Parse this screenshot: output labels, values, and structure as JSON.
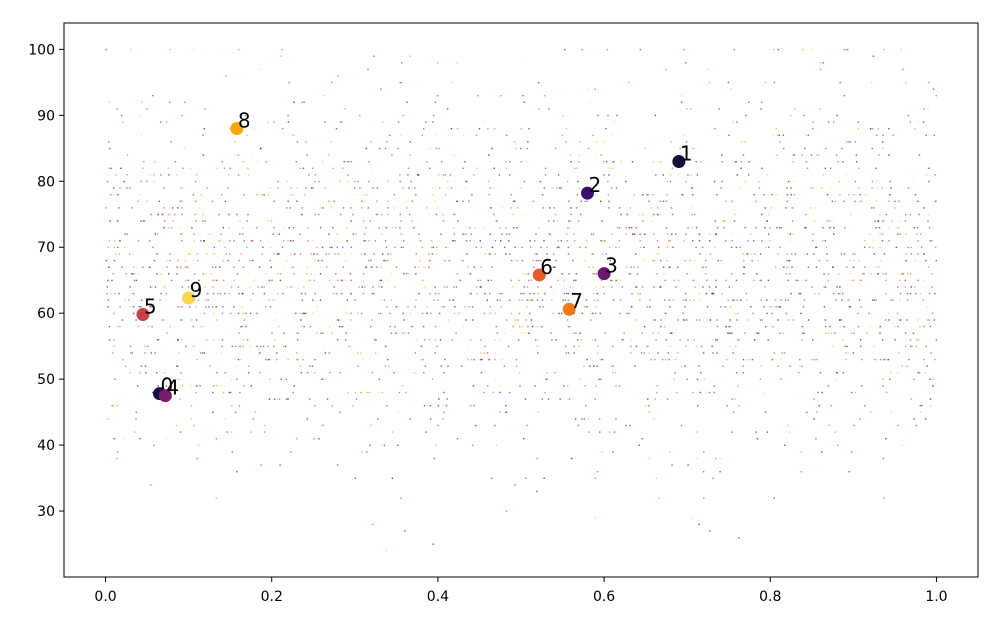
{
  "chart_data": {
    "type": "scatter",
    "title": "",
    "xlabel": "",
    "ylabel": "",
    "xlim": [
      -0.05,
      1.05
    ],
    "ylim": [
      20,
      104
    ],
    "grid": false,
    "x_ticks": [
      0.0,
      0.2,
      0.4,
      0.6,
      0.8,
      1.0
    ],
    "x_tick_labels": [
      "0.0",
      "0.2",
      "0.4",
      "0.6",
      "0.8",
      "1.0"
    ],
    "y_ticks": [
      30,
      40,
      50,
      60,
      70,
      80,
      90,
      100
    ],
    "y_tick_labels": [
      "30",
      "40",
      "50",
      "60",
      "70",
      "80",
      "90",
      "100"
    ],
    "colormap": [
      "#000004",
      "#320a5e",
      "#781b6c",
      "#bb3754",
      "#ec6824",
      "#fbb41a",
      "#fcffa4"
    ],
    "background_points": {
      "count": 3000,
      "x_range": [
        0.0,
        1.0
      ],
      "y_range": [
        24,
        100
      ],
      "marker_size": 1,
      "alpha": 0.65
    },
    "labeled_points": [
      {
        "label": "0",
        "x": 0.065,
        "y": 47.8,
        "color": "#1b0c41"
      },
      {
        "label": "1",
        "x": 0.69,
        "y": 83.0,
        "color": "#160b39"
      },
      {
        "label": "2",
        "x": 0.58,
        "y": 78.2,
        "color": "#3b0f70"
      },
      {
        "label": "3",
        "x": 0.6,
        "y": 66.0,
        "color": "#6a176e"
      },
      {
        "label": "4",
        "x": 0.072,
        "y": 47.5,
        "color": "#781c6d"
      },
      {
        "label": "5",
        "x": 0.045,
        "y": 59.8,
        "color": "#c73e4c"
      },
      {
        "label": "6",
        "x": 0.522,
        "y": 65.8,
        "color": "#e55c30"
      },
      {
        "label": "7",
        "x": 0.558,
        "y": 60.6,
        "color": "#f37819"
      },
      {
        "label": "8",
        "x": 0.158,
        "y": 88.0,
        "color": "#fca50a"
      },
      {
        "label": "9",
        "x": 0.1,
        "y": 62.3,
        "color": "#f6d746"
      }
    ]
  }
}
